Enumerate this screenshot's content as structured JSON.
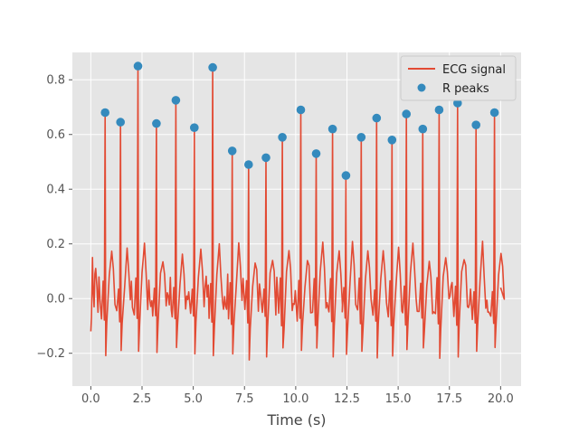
{
  "chart_data": {
    "type": "line",
    "title": "",
    "xlabel": "Time (s)",
    "ylabel": "",
    "xlim": [
      -0.9,
      21.0
    ],
    "ylim": [
      -0.32,
      0.9
    ],
    "xticks": [
      0.0,
      2.5,
      5.0,
      7.5,
      10.0,
      12.5,
      15.0,
      17.5,
      20.0
    ],
    "xtick_labels": [
      "0.0",
      "2.5",
      "5.0",
      "7.5",
      "10.0",
      "12.5",
      "15.0",
      "17.5",
      "20.0"
    ],
    "yticks": [
      -0.2,
      0.0,
      0.2,
      0.4,
      0.6,
      0.8
    ],
    "ytick_labels": [
      "−0.2",
      "0.0",
      "0.2",
      "0.4",
      "0.6",
      "0.8"
    ],
    "grid": true,
    "legend_position": "top-right",
    "style": {
      "background": "#e5e5e5",
      "grid_color": "#ffffff",
      "signal_color": "#e24a33",
      "peak_color": "#348abd"
    },
    "series": [
      {
        "name": "ECG signal",
        "kind": "line",
        "beats_x": [
          0.7,
          1.45,
          2.3,
          3.2,
          4.15,
          5.05,
          5.95,
          6.9,
          7.7,
          8.55,
          9.35,
          10.25,
          11.0,
          11.8,
          12.45,
          13.2,
          13.95,
          14.7,
          15.4,
          16.2,
          17.0,
          17.9,
          18.8,
          19.7
        ],
        "beats_y": [
          0.68,
          0.645,
          0.85,
          0.64,
          0.725,
          0.625,
          0.845,
          0.54,
          0.49,
          0.515,
          0.59,
          0.69,
          0.53,
          0.62,
          0.45,
          0.59,
          0.66,
          0.58,
          0.675,
          0.62,
          0.69,
          0.715,
          0.635,
          0.68
        ],
        "x_end": 20.0
      },
      {
        "name": "R peaks",
        "kind": "scatter",
        "x": [
          0.7,
          1.45,
          2.3,
          3.2,
          4.15,
          5.05,
          5.95,
          6.9,
          7.7,
          8.55,
          9.35,
          10.25,
          11.0,
          11.8,
          12.45,
          13.2,
          13.95,
          14.7,
          15.4,
          16.2,
          17.0,
          17.9,
          18.8,
          19.7
        ],
        "y": [
          0.68,
          0.645,
          0.85,
          0.64,
          0.725,
          0.625,
          0.845,
          0.54,
          0.49,
          0.515,
          0.59,
          0.69,
          0.53,
          0.62,
          0.45,
          0.59,
          0.66,
          0.58,
          0.675,
          0.62,
          0.69,
          0.715,
          0.635,
          0.68
        ]
      }
    ]
  }
}
